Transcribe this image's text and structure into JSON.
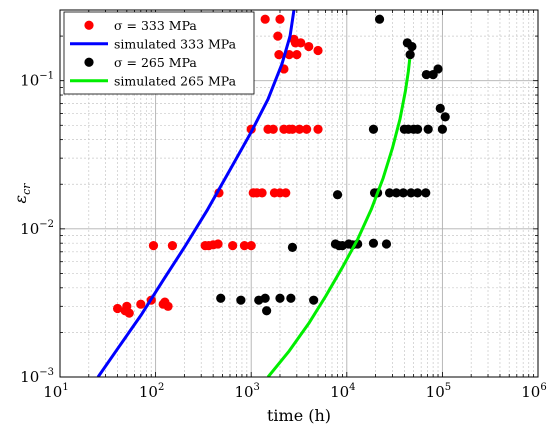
{
  "chart_data": {
    "type": "scatter",
    "title": "",
    "xlabel": "time (h)",
    "ylabel_base": "ε",
    "ylabel_sub": "cr",
    "xscale": "log",
    "yscale": "log",
    "xlim": [
      10,
      1000000
    ],
    "ylim": [
      0.001,
      0.3
    ],
    "grid": true,
    "grid_minor": true,
    "legend_position": "top-left",
    "x_ticks": [
      {
        "base": "10",
        "exp": "1"
      },
      {
        "base": "10",
        "exp": "2"
      },
      {
        "base": "10",
        "exp": "3"
      },
      {
        "base": "10",
        "exp": "4"
      },
      {
        "base": "10",
        "exp": "5"
      },
      {
        "base": "10",
        "exp": "6"
      }
    ],
    "x_tick_values": [
      10,
      100,
      1000,
      10000,
      100000,
      1000000
    ],
    "y_ticks": [
      {
        "base": "10",
        "exp": "−3"
      },
      {
        "base": "10",
        "exp": "−2"
      },
      {
        "base": "10",
        "exp": "−1"
      }
    ],
    "y_tick_values": [
      0.001,
      0.01,
      0.1
    ],
    "legend": [
      {
        "label": "σ = 333 MPa",
        "kind": "marker",
        "color": "#ff0000"
      },
      {
        "label": "simulated 333 MPa",
        "kind": "line",
        "color": "#0000ff"
      },
      {
        "label": "σ = 265 MPa",
        "kind": "marker",
        "color": "#000000"
      },
      {
        "label": "simulated 265 MPa",
        "kind": "line",
        "color": "#00ee00"
      }
    ],
    "series": [
      {
        "name": "σ = 333 MPa",
        "kind": "scatter",
        "color": "#ff0000",
        "points": [
          [
            40,
            0.0029
          ],
          [
            48,
            0.0028
          ],
          [
            50,
            0.003
          ],
          [
            53,
            0.0027
          ],
          [
            70,
            0.0031
          ],
          [
            90,
            0.0033
          ],
          [
            120,
            0.0031
          ],
          [
            125,
            0.0032
          ],
          [
            135,
            0.003
          ],
          [
            95,
            0.0077
          ],
          [
            150,
            0.0077
          ],
          [
            330,
            0.0077
          ],
          [
            360,
            0.0077
          ],
          [
            400,
            0.0078
          ],
          [
            450,
            0.0079
          ],
          [
            640,
            0.0077
          ],
          [
            850,
            0.0077
          ],
          [
            1000,
            0.0077
          ],
          [
            460,
            0.0175
          ],
          [
            1050,
            0.0175
          ],
          [
            1150,
            0.0175
          ],
          [
            1300,
            0.0175
          ],
          [
            1750,
            0.0175
          ],
          [
            2000,
            0.0175
          ],
          [
            2300,
            0.0175
          ],
          [
            1000,
            0.047
          ],
          [
            1500,
            0.047
          ],
          [
            1700,
            0.047
          ],
          [
            2200,
            0.047
          ],
          [
            2500,
            0.047
          ],
          [
            2700,
            0.047
          ],
          [
            3200,
            0.047
          ],
          [
            3800,
            0.047
          ],
          [
            5000,
            0.047
          ],
          [
            1400,
            0.26
          ],
          [
            2000,
            0.26
          ],
          [
            1900,
            0.2
          ],
          [
            1950,
            0.15
          ],
          [
            2200,
            0.12
          ],
          [
            2500,
            0.15
          ],
          [
            3000,
            0.15
          ],
          [
            2800,
            0.19
          ],
          [
            2900,
            0.18
          ],
          [
            3300,
            0.18
          ],
          [
            4000,
            0.17
          ],
          [
            5000,
            0.16
          ]
        ]
      },
      {
        "name": "simulated 333 MPa",
        "kind": "line",
        "color": "#0000ff",
        "points": [
          [
            25,
            0.001
          ],
          [
            40,
            0.00155
          ],
          [
            70,
            0.0026
          ],
          [
            120,
            0.0045
          ],
          [
            200,
            0.0075
          ],
          [
            350,
            0.0135
          ],
          [
            600,
            0.025
          ],
          [
            1000,
            0.045
          ],
          [
            1500,
            0.075
          ],
          [
            2100,
            0.13
          ],
          [
            2550,
            0.2
          ],
          [
            2800,
            0.3
          ]
        ]
      },
      {
        "name": "σ = 265 MPa",
        "kind": "scatter",
        "color": "#000000",
        "points": [
          [
            480,
            0.0034
          ],
          [
            780,
            0.0033
          ],
          [
            1200,
            0.0033
          ],
          [
            1400,
            0.0034
          ],
          [
            1450,
            0.0028
          ],
          [
            2000,
            0.0034
          ],
          [
            2600,
            0.0034
          ],
          [
            4500,
            0.0033
          ],
          [
            2700,
            0.0075
          ],
          [
            7600,
            0.0079
          ],
          [
            8300,
            0.0077
          ],
          [
            9000,
            0.0077
          ],
          [
            10500,
            0.0079
          ],
          [
            11500,
            0.0078
          ],
          [
            13000,
            0.0079
          ],
          [
            19000,
            0.008
          ],
          [
            26000,
            0.0079
          ],
          [
            8000,
            0.017
          ],
          [
            19500,
            0.0175
          ],
          [
            21000,
            0.0175
          ],
          [
            28000,
            0.0175
          ],
          [
            33000,
            0.0175
          ],
          [
            39000,
            0.0175
          ],
          [
            47000,
            0.0175
          ],
          [
            55000,
            0.0175
          ],
          [
            67000,
            0.0175
          ],
          [
            19000,
            0.047
          ],
          [
            40000,
            0.047
          ],
          [
            44000,
            0.047
          ],
          [
            50000,
            0.047
          ],
          [
            55000,
            0.047
          ],
          [
            71000,
            0.047
          ],
          [
            100000,
            0.047
          ],
          [
            22000,
            0.26
          ],
          [
            43000,
            0.18
          ],
          [
            46000,
            0.15
          ],
          [
            48000,
            0.17
          ],
          [
            68000,
            0.11
          ],
          [
            80000,
            0.11
          ],
          [
            90000,
            0.12
          ],
          [
            95000,
            0.065
          ],
          [
            107000,
            0.057
          ]
        ]
      },
      {
        "name": "simulated 265 MPa",
        "kind": "line",
        "color": "#00ee00",
        "points": [
          [
            1500,
            0.001
          ],
          [
            2500,
            0.0015
          ],
          [
            4000,
            0.0023
          ],
          [
            6000,
            0.0035
          ],
          [
            9000,
            0.0055
          ],
          [
            13000,
            0.0085
          ],
          [
            18000,
            0.0135
          ],
          [
            24000,
            0.022
          ],
          [
            30000,
            0.035
          ],
          [
            36000,
            0.055
          ],
          [
            41000,
            0.085
          ],
          [
            44000,
            0.115
          ],
          [
            45500,
            0.14
          ]
        ]
      }
    ]
  }
}
